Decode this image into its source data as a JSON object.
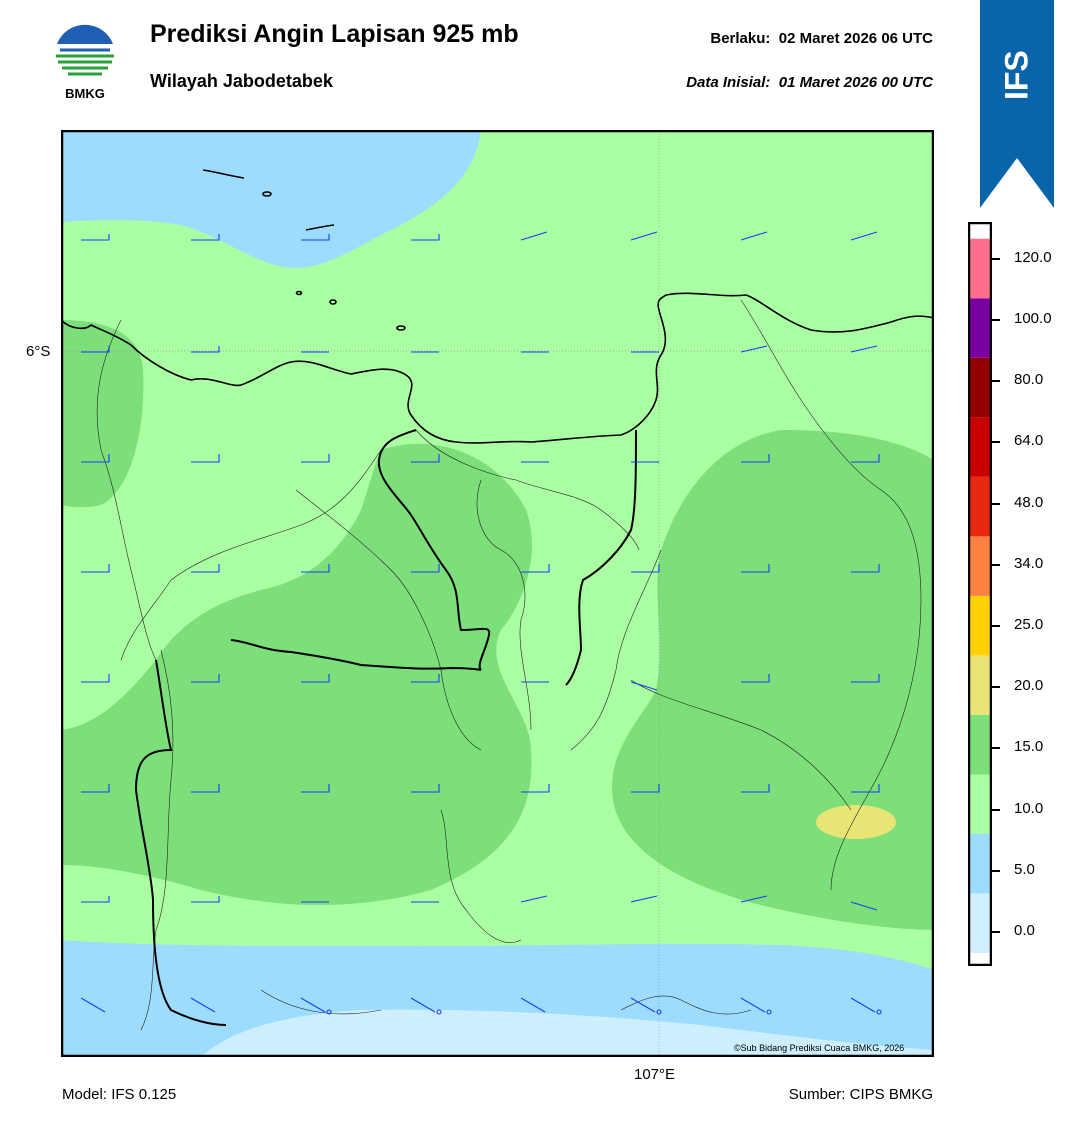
{
  "header": {
    "title": "Prediksi Angin Lapisan 925 mb",
    "subtitle": "Wilayah Jabodetabek",
    "valid_label": "Berlaku:",
    "valid_value": "02 Maret 2026 06 UTC",
    "init_label": "Data Inisial:",
    "init_value": "01 Maret 2026 00 UTC",
    "logo_text": "BMKG",
    "model_badge": "IFS"
  },
  "map": {
    "lat_label": "6°S",
    "lon_label": "107°E",
    "credit": "©Sub Bidang Prediksi Cuaca BMKG, 2026",
    "wind_barb_color": "#1a3bff",
    "coast_color": "#000000"
  },
  "footer": {
    "model": "Model: IFS 0.125",
    "source": "Sumber: CIPS BMKG"
  },
  "colorbar": {
    "ticks": [
      "0.0",
      "5.0",
      "10.0",
      "15.0",
      "20.0",
      "25.0",
      "34.0",
      "48.0",
      "64.0",
      "80.0",
      "100.0",
      "120.0"
    ],
    "colors": [
      "#ffffff",
      "#d0f0ff",
      "#9ddcfd",
      "#abffa3",
      "#7ddf7a",
      "#e8e575",
      "#ffd200",
      "#ff8040",
      "#e82810",
      "#c80000",
      "#920000",
      "#7800a0",
      "#ff6d8d"
    ]
  },
  "colors": {
    "ribbon": "#0a64aa",
    "calm": "#cdeefd",
    "light": "#9ddcfd",
    "moderate": "#abffa3",
    "fresh": "#7ddf7a",
    "strong": "#e8e575"
  }
}
